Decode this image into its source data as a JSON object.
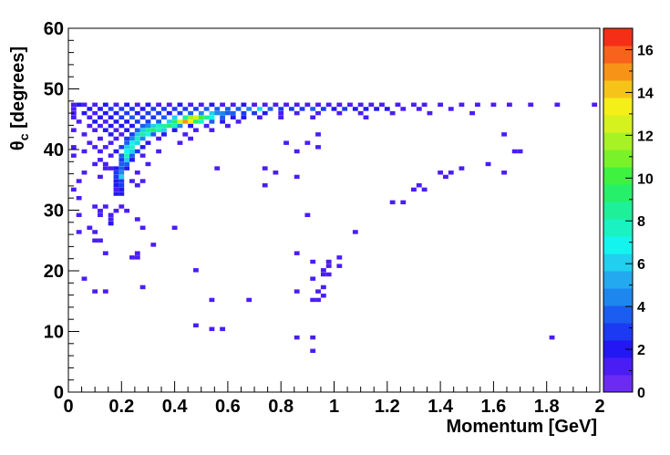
{
  "chart_data": {
    "type": "heatmap",
    "xlabel": "Momentum [GeV]",
    "ylabel_symbol": "θ",
    "ylabel_sub": "c",
    "ylabel_rest": " [degrees]",
    "xlim": [
      0,
      2
    ],
    "ylim": [
      0,
      60
    ],
    "x_ticks": [
      "0",
      "0.2",
      "0.4",
      "0.6",
      "0.8",
      "1",
      "1.2",
      "1.4",
      "1.6",
      "1.8",
      "2"
    ],
    "y_ticks": [
      "0",
      "10",
      "20",
      "30",
      "40",
      "50",
      "60"
    ],
    "bin_width_x": 0.02,
    "bin_width_y": 0.67,
    "colorbar": {
      "min": 0,
      "max": 17,
      "ticks": [
        "0",
        "2",
        "4",
        "6",
        "8",
        "10",
        "12",
        "14",
        "16"
      ],
      "tick_values": [
        0,
        2,
        4,
        6,
        8,
        10,
        12,
        14,
        16
      ]
    },
    "grid": false,
    "cells": [
      [
        0.02,
        47.4,
        1
      ],
      [
        0.04,
        47.4,
        2
      ],
      [
        0.06,
        47.4,
        1
      ],
      [
        0.1,
        47.4,
        1
      ],
      [
        0.14,
        47.4,
        2
      ],
      [
        0.18,
        47.4,
        1
      ],
      [
        0.22,
        47.4,
        2
      ],
      [
        0.26,
        47.4,
        1
      ],
      [
        0.3,
        47.4,
        2
      ],
      [
        0.34,
        47.4,
        1
      ],
      [
        0.38,
        47.4,
        1
      ],
      [
        0.42,
        47.4,
        2
      ],
      [
        0.46,
        47.4,
        1
      ],
      [
        0.5,
        47.4,
        1
      ],
      [
        0.54,
        47.4,
        2
      ],
      [
        0.58,
        47.4,
        1
      ],
      [
        0.62,
        47.4,
        1
      ],
      [
        0.66,
        47.4,
        2
      ],
      [
        0.7,
        47.4,
        1
      ],
      [
        0.74,
        47.4,
        1
      ],
      [
        0.78,
        47.4,
        1
      ],
      [
        0.82,
        47.4,
        1
      ],
      [
        0.86,
        47.4,
        1
      ],
      [
        0.9,
        47.4,
        1
      ],
      [
        0.94,
        47.4,
        1
      ],
      [
        0.98,
        47.4,
        1
      ],
      [
        1.02,
        47.4,
        1
      ],
      [
        1.06,
        47.4,
        1
      ],
      [
        1.1,
        47.4,
        1
      ],
      [
        1.14,
        47.4,
        1
      ],
      [
        1.18,
        47.4,
        1
      ],
      [
        1.24,
        47.4,
        1
      ],
      [
        1.3,
        47.4,
        1
      ],
      [
        1.34,
        47.4,
        1
      ],
      [
        1.4,
        47.4,
        1
      ],
      [
        1.48,
        47.4,
        1
      ],
      [
        1.54,
        47.4,
        1
      ],
      [
        1.6,
        47.4,
        1
      ],
      [
        1.66,
        47.4,
        1
      ],
      [
        1.74,
        47.4,
        1
      ],
      [
        1.84,
        47.4,
        1
      ],
      [
        1.98,
        47.4,
        1
      ],
      [
        0.02,
        46.7,
        1
      ],
      [
        0.08,
        46.7,
        2
      ],
      [
        0.12,
        46.7,
        2
      ],
      [
        0.16,
        46.7,
        3
      ],
      [
        0.2,
        46.7,
        3
      ],
      [
        0.24,
        46.7,
        3
      ],
      [
        0.28,
        46.7,
        2
      ],
      [
        0.32,
        46.7,
        3
      ],
      [
        0.36,
        46.7,
        3
      ],
      [
        0.4,
        46.7,
        3
      ],
      [
        0.44,
        46.7,
        3
      ],
      [
        0.48,
        46.7,
        3
      ],
      [
        0.52,
        46.7,
        4
      ],
      [
        0.56,
        46.7,
        4
      ],
      [
        0.6,
        46.7,
        4
      ],
      [
        0.64,
        46.7,
        4
      ],
      [
        0.68,
        46.7,
        5
      ],
      [
        0.72,
        46.7,
        6
      ],
      [
        0.76,
        46.7,
        4
      ],
      [
        0.8,
        46.7,
        3
      ],
      [
        0.84,
        46.7,
        3
      ],
      [
        0.88,
        46.7,
        3
      ],
      [
        0.92,
        46.7,
        4
      ],
      [
        0.96,
        46.7,
        3
      ],
      [
        1.0,
        46.7,
        2
      ],
      [
        1.04,
        46.7,
        3
      ],
      [
        1.08,
        46.7,
        2
      ],
      [
        1.12,
        46.7,
        2
      ],
      [
        1.16,
        46.7,
        2
      ],
      [
        1.2,
        46.7,
        2
      ],
      [
        1.26,
        46.7,
        1
      ],
      [
        1.32,
        46.7,
        1
      ],
      [
        1.44,
        46.7,
        1
      ],
      [
        0.02,
        46.0,
        1
      ],
      [
        0.06,
        46.0,
        2
      ],
      [
        0.1,
        46.0,
        1
      ],
      [
        0.14,
        46.0,
        2
      ],
      [
        0.18,
        46.0,
        2
      ],
      [
        0.22,
        46.0,
        3
      ],
      [
        0.26,
        46.0,
        2
      ],
      [
        0.3,
        46.0,
        3
      ],
      [
        0.34,
        46.0,
        3
      ],
      [
        0.38,
        46.0,
        2
      ],
      [
        0.42,
        46.0,
        3
      ],
      [
        0.46,
        46.0,
        4
      ],
      [
        0.5,
        46.0,
        5
      ],
      [
        0.54,
        46.0,
        6
      ],
      [
        0.56,
        46.0,
        5
      ],
      [
        0.58,
        46.0,
        5
      ],
      [
        0.6,
        46.0,
        4
      ],
      [
        0.62,
        46.0,
        4
      ],
      [
        0.66,
        46.0,
        3
      ],
      [
        0.7,
        46.0,
        3
      ],
      [
        0.74,
        46.0,
        2
      ],
      [
        0.8,
        46.0,
        1
      ],
      [
        0.86,
        46.0,
        1
      ],
      [
        0.94,
        46.0,
        1
      ],
      [
        1.02,
        46.0,
        1
      ],
      [
        1.1,
        46.0,
        1
      ],
      [
        1.22,
        46.0,
        1
      ],
      [
        1.36,
        46.0,
        1
      ],
      [
        1.52,
        46.0,
        1
      ],
      [
        0.02,
        45.3,
        1
      ],
      [
        0.08,
        45.3,
        1
      ],
      [
        0.12,
        45.3,
        2
      ],
      [
        0.16,
        45.3,
        2
      ],
      [
        0.2,
        45.3,
        3
      ],
      [
        0.24,
        45.3,
        4
      ],
      [
        0.28,
        45.3,
        3
      ],
      [
        0.32,
        45.3,
        3
      ],
      [
        0.36,
        45.3,
        4
      ],
      [
        0.4,
        45.3,
        6
      ],
      [
        0.44,
        45.3,
        9
      ],
      [
        0.46,
        45.3,
        12
      ],
      [
        0.48,
        45.3,
        13
      ],
      [
        0.5,
        45.3,
        11
      ],
      [
        0.52,
        45.3,
        9
      ],
      [
        0.54,
        45.3,
        7
      ],
      [
        0.58,
        45.3,
        4
      ],
      [
        0.62,
        45.3,
        2
      ],
      [
        0.66,
        45.3,
        2
      ],
      [
        0.72,
        45.3,
        1
      ],
      [
        0.8,
        45.3,
        1
      ],
      [
        0.92,
        45.3,
        1
      ],
      [
        1.12,
        45.3,
        1
      ],
      [
        0.04,
        44.6,
        1
      ],
      [
        0.1,
        44.6,
        2
      ],
      [
        0.14,
        44.6,
        1
      ],
      [
        0.18,
        44.6,
        2
      ],
      [
        0.22,
        44.6,
        2
      ],
      [
        0.26,
        44.6,
        3
      ],
      [
        0.3,
        44.6,
        3
      ],
      [
        0.34,
        44.6,
        4
      ],
      [
        0.38,
        44.6,
        6
      ],
      [
        0.4,
        44.6,
        10
      ],
      [
        0.42,
        44.6,
        13
      ],
      [
        0.44,
        44.6,
        16
      ],
      [
        0.46,
        44.6,
        14
      ],
      [
        0.48,
        44.6,
        10
      ],
      [
        0.5,
        44.6,
        8
      ],
      [
        0.54,
        44.6,
        4
      ],
      [
        0.58,
        44.6,
        2
      ],
      [
        0.64,
        44.6,
        1
      ],
      [
        0.08,
        43.9,
        1
      ],
      [
        0.12,
        43.9,
        1
      ],
      [
        0.16,
        43.9,
        2
      ],
      [
        0.2,
        43.9,
        2
      ],
      [
        0.24,
        43.9,
        2
      ],
      [
        0.28,
        43.9,
        4
      ],
      [
        0.3,
        43.9,
        5
      ],
      [
        0.32,
        43.9,
        6
      ],
      [
        0.34,
        43.9,
        8
      ],
      [
        0.36,
        43.9,
        9
      ],
      [
        0.38,
        43.9,
        10
      ],
      [
        0.4,
        43.9,
        8
      ],
      [
        0.42,
        43.9,
        5
      ],
      [
        0.46,
        43.9,
        2
      ],
      [
        0.52,
        43.9,
        1
      ],
      [
        0.6,
        43.9,
        1
      ],
      [
        0.02,
        43.2,
        1
      ],
      [
        0.1,
        43.2,
        1
      ],
      [
        0.14,
        43.2,
        2
      ],
      [
        0.18,
        43.2,
        1
      ],
      [
        0.22,
        43.2,
        2
      ],
      [
        0.26,
        43.2,
        4
      ],
      [
        0.28,
        43.2,
        6
      ],
      [
        0.3,
        43.2,
        9
      ],
      [
        0.32,
        43.2,
        10
      ],
      [
        0.34,
        43.2,
        8
      ],
      [
        0.36,
        43.2,
        6
      ],
      [
        0.4,
        43.2,
        2
      ],
      [
        0.48,
        43.2,
        1
      ],
      [
        0.54,
        43.2,
        1
      ],
      [
        0.06,
        42.5,
        1
      ],
      [
        0.16,
        42.5,
        2
      ],
      [
        0.2,
        42.5,
        1
      ],
      [
        0.24,
        42.5,
        3
      ],
      [
        0.26,
        42.5,
        6
      ],
      [
        0.28,
        42.5,
        9
      ],
      [
        0.3,
        42.5,
        7
      ],
      [
        0.32,
        42.5,
        4
      ],
      [
        0.36,
        42.5,
        2
      ],
      [
        0.44,
        42.5,
        1
      ],
      [
        0.94,
        42.5,
        1
      ],
      [
        1.64,
        42.5,
        1
      ],
      [
        0.12,
        41.8,
        1
      ],
      [
        0.18,
        41.8,
        1
      ],
      [
        0.22,
        41.8,
        3
      ],
      [
        0.24,
        41.8,
        5
      ],
      [
        0.26,
        41.8,
        8
      ],
      [
        0.28,
        41.8,
        5
      ],
      [
        0.34,
        41.8,
        1
      ],
      [
        0.46,
        41.8,
        1
      ],
      [
        0.08,
        41.1,
        1
      ],
      [
        0.16,
        41.1,
        1
      ],
      [
        0.22,
        41.1,
        4
      ],
      [
        0.24,
        41.1,
        7
      ],
      [
        0.26,
        41.1,
        6
      ],
      [
        0.3,
        41.1,
        2
      ],
      [
        0.42,
        41.1,
        1
      ],
      [
        0.82,
        41.1,
        1
      ],
      [
        0.9,
        41.1,
        1
      ],
      [
        0.02,
        40.4,
        1
      ],
      [
        0.1,
        40.4,
        1
      ],
      [
        0.14,
        40.4,
        1
      ],
      [
        0.2,
        40.4,
        3
      ],
      [
        0.22,
        40.4,
        6
      ],
      [
        0.24,
        40.4,
        8
      ],
      [
        0.28,
        40.4,
        2
      ],
      [
        0.94,
        40.4,
        1
      ],
      [
        0.06,
        39.7,
        1
      ],
      [
        0.12,
        39.7,
        1
      ],
      [
        0.18,
        39.7,
        2
      ],
      [
        0.22,
        39.7,
        7
      ],
      [
        0.24,
        39.7,
        6
      ],
      [
        0.26,
        39.7,
        3
      ],
      [
        0.34,
        39.7,
        1
      ],
      [
        0.86,
        39.7,
        1
      ],
      [
        1.68,
        39.7,
        1
      ],
      [
        1.7,
        39.7,
        1
      ],
      [
        0.02,
        39.0,
        1
      ],
      [
        0.16,
        39.0,
        1
      ],
      [
        0.2,
        39.0,
        4
      ],
      [
        0.22,
        39.0,
        8
      ],
      [
        0.24,
        39.0,
        4
      ],
      [
        0.28,
        39.0,
        1
      ],
      [
        0.12,
        38.3,
        1
      ],
      [
        0.2,
        38.3,
        3
      ],
      [
        0.22,
        38.3,
        6
      ],
      [
        0.24,
        38.3,
        2
      ],
      [
        0.1,
        37.6,
        1
      ],
      [
        0.14,
        37.6,
        1
      ],
      [
        0.2,
        37.6,
        4
      ],
      [
        0.22,
        37.6,
        4
      ],
      [
        0.3,
        37.6,
        1
      ],
      [
        1.58,
        37.6,
        1
      ],
      [
        0.14,
        36.9,
        1
      ],
      [
        0.16,
        36.9,
        1
      ],
      [
        0.18,
        36.9,
        2
      ],
      [
        0.2,
        36.9,
        4
      ],
      [
        0.22,
        36.9,
        2
      ],
      [
        0.56,
        36.9,
        1
      ],
      [
        0.74,
        36.9,
        1
      ],
      [
        1.48,
        36.9,
        1
      ],
      [
        0.06,
        36.2,
        1
      ],
      [
        0.18,
        36.2,
        3
      ],
      [
        0.2,
        36.2,
        5
      ],
      [
        0.26,
        36.2,
        1
      ],
      [
        0.78,
        36.2,
        1
      ],
      [
        1.4,
        36.2,
        1
      ],
      [
        1.44,
        36.2,
        1
      ],
      [
        1.64,
        36.2,
        1
      ],
      [
        0.18,
        35.5,
        3
      ],
      [
        0.2,
        35.5,
        6
      ],
      [
        0.12,
        35.5,
        1
      ],
      [
        1.42,
        35.5,
        1
      ],
      [
        0.86,
        35.5,
        1
      ],
      [
        0.04,
        34.8,
        1
      ],
      [
        0.18,
        34.8,
        2
      ],
      [
        0.2,
        34.8,
        3
      ],
      [
        0.24,
        34.8,
        1
      ],
      [
        0.28,
        34.8,
        1
      ],
      [
        0.18,
        34.1,
        2
      ],
      [
        0.2,
        34.1,
        3
      ],
      [
        0.26,
        34.1,
        1
      ],
      [
        1.32,
        34.1,
        1
      ],
      [
        0.74,
        34.1,
        1
      ],
      [
        0.02,
        33.4,
        1
      ],
      [
        0.18,
        33.4,
        1
      ],
      [
        0.2,
        33.4,
        2
      ],
      [
        1.3,
        33.4,
        1
      ],
      [
        1.34,
        33.4,
        1
      ],
      [
        0.18,
        32.7,
        2
      ],
      [
        0.2,
        32.7,
        2
      ],
      [
        0.04,
        32.0,
        1
      ],
      [
        1.22,
        31.3,
        1
      ],
      [
        1.26,
        31.3,
        1
      ],
      [
        0.1,
        30.6,
        1
      ],
      [
        0.2,
        30.6,
        1
      ],
      [
        0.14,
        30.6,
        1
      ],
      [
        0.12,
        29.9,
        1
      ],
      [
        0.18,
        29.9,
        1
      ],
      [
        0.22,
        29.9,
        1
      ],
      [
        0.04,
        29.2,
        1
      ],
      [
        0.12,
        29.2,
        1
      ],
      [
        0.16,
        29.2,
        1
      ],
      [
        0.9,
        29.2,
        1
      ],
      [
        0.16,
        28.5,
        1
      ],
      [
        0.26,
        28.5,
        1
      ],
      [
        0.16,
        27.8,
        2
      ],
      [
        0.08,
        27.1,
        1
      ],
      [
        0.4,
        27.1,
        1
      ],
      [
        0.28,
        27.1,
        1
      ],
      [
        0.04,
        26.4,
        1
      ],
      [
        0.1,
        26.4,
        1
      ],
      [
        1.08,
        26.4,
        1
      ],
      [
        0.12,
        25.0,
        1
      ],
      [
        0.1,
        25.0,
        1
      ],
      [
        0.32,
        24.3,
        1
      ],
      [
        0.14,
        22.9,
        1
      ],
      [
        0.26,
        22.9,
        1
      ],
      [
        0.86,
        22.9,
        1
      ],
      [
        0.24,
        22.2,
        1
      ],
      [
        0.26,
        22.2,
        1
      ],
      [
        1.02,
        22.2,
        1
      ],
      [
        0.92,
        21.5,
        1
      ],
      [
        0.98,
        21.5,
        1
      ],
      [
        1.02,
        20.8,
        1
      ],
      [
        0.98,
        20.8,
        1
      ],
      [
        0.48,
        20.1,
        1
      ],
      [
        0.96,
        20.1,
        1
      ],
      [
        0.96,
        19.4,
        1
      ],
      [
        0.98,
        19.4,
        1
      ],
      [
        0.06,
        18.7,
        1
      ],
      [
        0.92,
        18.7,
        1
      ],
      [
        0.28,
        17.3,
        1
      ],
      [
        0.96,
        17.3,
        1
      ],
      [
        0.1,
        16.6,
        1
      ],
      [
        0.14,
        16.6,
        1
      ],
      [
        0.86,
        16.6,
        1
      ],
      [
        0.94,
        16.6,
        1
      ],
      [
        0.96,
        15.9,
        1
      ],
      [
        0.54,
        15.2,
        1
      ],
      [
        0.68,
        15.2,
        1
      ],
      [
        0.92,
        15.2,
        1
      ],
      [
        0.94,
        15.2,
        1
      ],
      [
        0.48,
        11.0,
        1
      ],
      [
        0.54,
        10.4,
        1
      ],
      [
        0.58,
        10.4,
        1
      ],
      [
        0.86,
        9.0,
        1
      ],
      [
        0.92,
        9.0,
        1
      ],
      [
        1.82,
        9.0,
        1
      ],
      [
        0.92,
        6.8,
        1
      ]
    ]
  }
}
